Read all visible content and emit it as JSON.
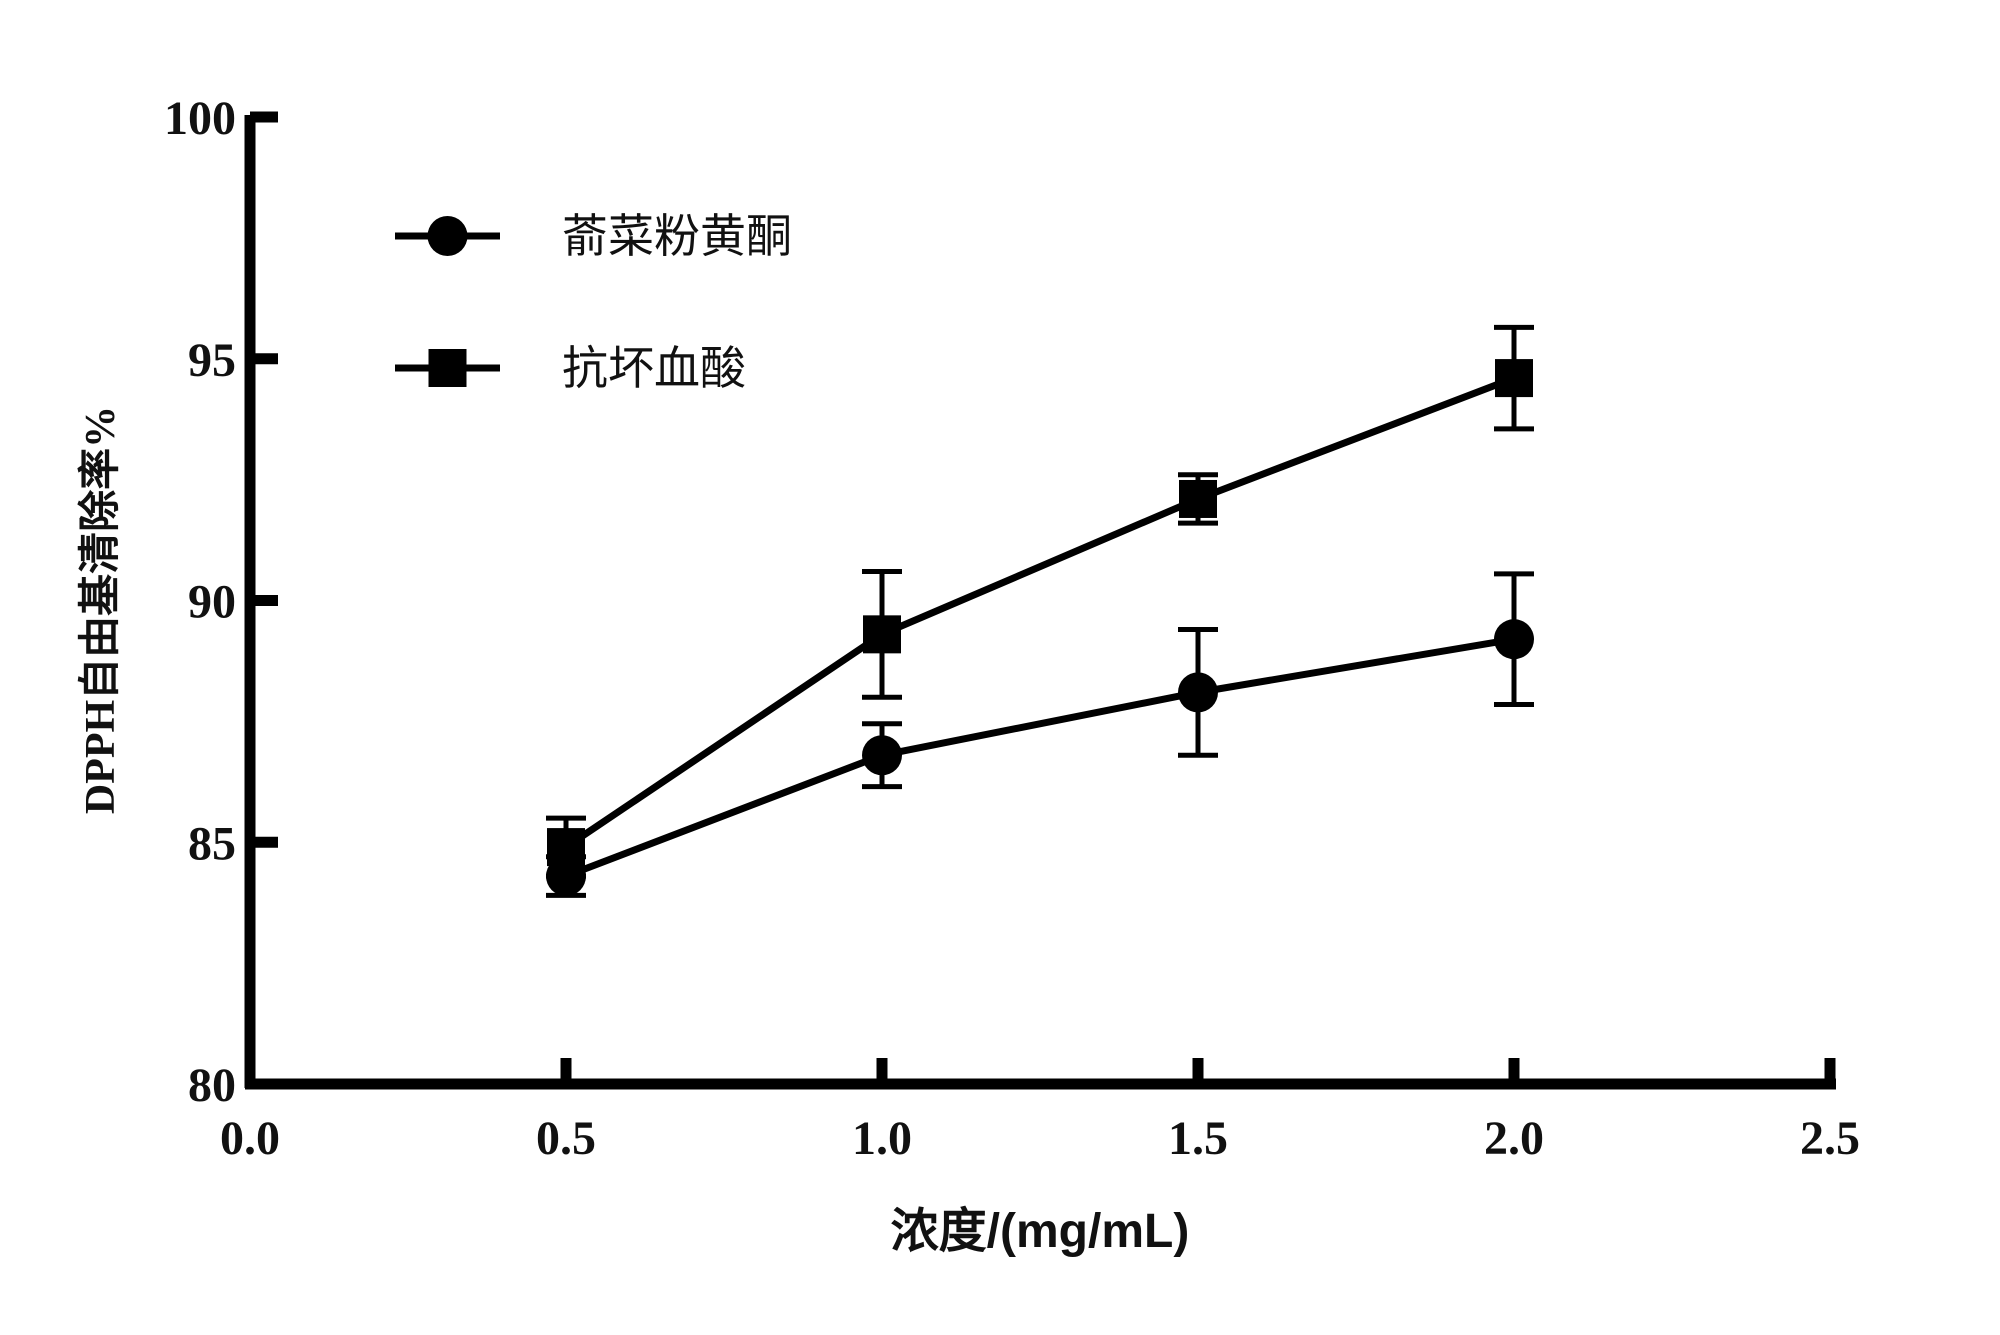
{
  "chart_data": {
    "type": "line",
    "title": "",
    "xlabel": "浓度/(mg/mL)",
    "ylabel": "DPPH自由基清除率%",
    "xlim": [
      0.0,
      2.5
    ],
    "ylim": [
      80,
      100
    ],
    "xticks": [
      "0.0",
      "0.5",
      "1.0",
      "1.5",
      "2.0",
      "2.5"
    ],
    "yticks": [
      "80",
      "85",
      "90",
      "95",
      "100"
    ],
    "grid": false,
    "legend_position": "top-left",
    "series": [
      {
        "name": "萮菜粉黄酮",
        "marker": "circle",
        "color": "#000000",
        "x": [
          0.5,
          1.0,
          1.5,
          2.0
        ],
        "y": [
          84.3,
          86.8,
          88.1,
          89.2
        ],
        "error": [
          0.4,
          0.65,
          1.3,
          1.35
        ]
      },
      {
        "name": "抗坏血酸",
        "marker": "square",
        "color": "#000000",
        "x": [
          0.5,
          1.0,
          1.5,
          2.0
        ],
        "y": [
          84.9,
          89.3,
          92.1,
          94.6
        ],
        "error": [
          0.6,
          1.3,
          0.5,
          1.05
        ]
      }
    ]
  }
}
